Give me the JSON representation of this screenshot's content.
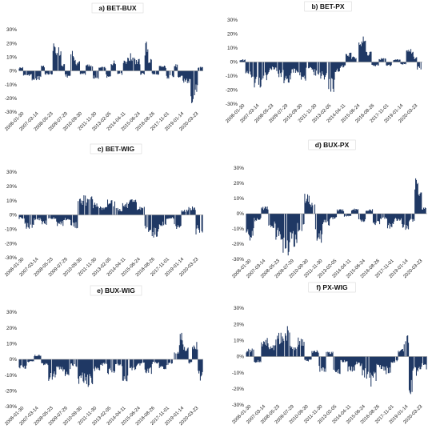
{
  "colors": {
    "bar": "#1f3864",
    "axis": "#888888",
    "grid": "#d9d9d9"
  },
  "chart_data": [
    {
      "type": "bar",
      "title": "a) BET-BUX",
      "yticks": [
        "30%",
        "20%",
        "10%",
        "0%",
        "-10%",
        "-20%",
        "-30%"
      ],
      "xticks": [
        "2006-01-30",
        "2007-03-14",
        "2008-05-23",
        "2009-07-29",
        "2010-09-30",
        "2011-11-30",
        "2013-02-05",
        "2014-04-11",
        "2015-06-24",
        "2016-08-26",
        "2017-11-01",
        "2019-01-14",
        "2020-03-23"
      ],
      "ylim": [
        -30,
        30
      ],
      "segments": [
        [
          0,
          0.02,
          3
        ],
        [
          0.02,
          0.07,
          -4
        ],
        [
          0.07,
          0.12,
          -7
        ],
        [
          0.12,
          0.14,
          5
        ],
        [
          0.14,
          0.18,
          -3
        ],
        [
          0.18,
          0.19,
          29
        ],
        [
          0.19,
          0.23,
          18
        ],
        [
          0.23,
          0.25,
          5
        ],
        [
          0.25,
          0.28,
          -5
        ],
        [
          0.28,
          0.3,
          17
        ],
        [
          0.3,
          0.33,
          8
        ],
        [
          0.33,
          0.36,
          -3
        ],
        [
          0.36,
          0.4,
          5
        ],
        [
          0.4,
          0.43,
          -6
        ],
        [
          0.43,
          0.47,
          3
        ],
        [
          0.47,
          0.5,
          -5
        ],
        [
          0.5,
          0.53,
          8
        ],
        [
          0.53,
          0.56,
          -3
        ],
        [
          0.56,
          0.59,
          10
        ],
        [
          0.59,
          0.63,
          13
        ],
        [
          0.63,
          0.66,
          9
        ],
        [
          0.66,
          0.68,
          -3
        ],
        [
          0.68,
          0.7,
          22
        ],
        [
          0.7,
          0.72,
          10
        ],
        [
          0.72,
          0.76,
          -3
        ],
        [
          0.76,
          0.8,
          4
        ],
        [
          0.8,
          0.84,
          -6
        ],
        [
          0.84,
          0.86,
          5
        ],
        [
          0.86,
          0.89,
          -5
        ],
        [
          0.89,
          0.93,
          -10
        ],
        [
          0.93,
          0.95,
          -24
        ],
        [
          0.95,
          0.97,
          -18
        ],
        [
          0.97,
          1.0,
          4
        ]
      ]
    },
    {
      "type": "bar",
      "title": "b) BET-PX",
      "yticks": [
        "30%",
        "20%",
        "10%",
        "0%",
        "-10%",
        "-20%",
        "-30%"
      ],
      "xticks": [
        "2006-01-30",
        "2007-03-14",
        "2008-05-23",
        "2009-07-29",
        "2010-09-30",
        "2011-11-30",
        "2013-02-05",
        "2014-04-11",
        "2015-06-24",
        "2016-08-26",
        "2017-11-01",
        "2019-01-14",
        "2020-03-23"
      ],
      "ylim": [
        -30,
        30
      ],
      "segments": [
        [
          0,
          0.03,
          2
        ],
        [
          0.03,
          0.07,
          -12
        ],
        [
          0.07,
          0.12,
          -21
        ],
        [
          0.12,
          0.16,
          -14
        ],
        [
          0.16,
          0.2,
          -6
        ],
        [
          0.2,
          0.24,
          -11
        ],
        [
          0.24,
          0.28,
          -16
        ],
        [
          0.28,
          0.32,
          -8
        ],
        [
          0.32,
          0.36,
          -14
        ],
        [
          0.36,
          0.4,
          -6
        ],
        [
          0.4,
          0.44,
          -10
        ],
        [
          0.44,
          0.48,
          -13
        ],
        [
          0.48,
          0.52,
          -23
        ],
        [
          0.52,
          0.55,
          -8
        ],
        [
          0.55,
          0.58,
          -4
        ],
        [
          0.58,
          0.61,
          7
        ],
        [
          0.61,
          0.64,
          4
        ],
        [
          0.64,
          0.66,
          23
        ],
        [
          0.66,
          0.69,
          19
        ],
        [
          0.69,
          0.72,
          9
        ],
        [
          0.72,
          0.76,
          -3
        ],
        [
          0.76,
          0.8,
          3
        ],
        [
          0.8,
          0.84,
          -3
        ],
        [
          0.84,
          0.88,
          2
        ],
        [
          0.88,
          0.91,
          -2
        ],
        [
          0.91,
          0.95,
          11
        ],
        [
          0.95,
          0.97,
          4
        ],
        [
          0.97,
          1.0,
          -6
        ]
      ]
    },
    {
      "type": "bar",
      "title": "c) BET-WIG",
      "yticks": [
        "30%",
        "20%",
        "10%",
        "0%",
        "-10%",
        "-20%",
        "-30%"
      ],
      "xticks": [
        "2006-01-30",
        "2007-03-14",
        "2008-05-23",
        "2009-07-29",
        "2010-09-30",
        "2011-11-30",
        "2013-02-05",
        "2014-04-11",
        "2015-06-24",
        "2016-08-26",
        "2017-11-01",
        "2019-01-14",
        "2020-03-23"
      ],
      "ylim": [
        -30,
        30
      ],
      "segments": [
        [
          0,
          0.03,
          -3
        ],
        [
          0.03,
          0.08,
          -10
        ],
        [
          0.08,
          0.12,
          -4
        ],
        [
          0.12,
          0.16,
          -7
        ],
        [
          0.16,
          0.2,
          -3
        ],
        [
          0.2,
          0.24,
          -8
        ],
        [
          0.24,
          0.28,
          -4
        ],
        [
          0.28,
          0.32,
          -10
        ],
        [
          0.32,
          0.36,
          14
        ],
        [
          0.36,
          0.4,
          13
        ],
        [
          0.4,
          0.44,
          9
        ],
        [
          0.44,
          0.48,
          6
        ],
        [
          0.48,
          0.52,
          12
        ],
        [
          0.52,
          0.56,
          5
        ],
        [
          0.56,
          0.6,
          9
        ],
        [
          0.6,
          0.64,
          11
        ],
        [
          0.64,
          0.68,
          6
        ],
        [
          0.68,
          0.72,
          -12
        ],
        [
          0.72,
          0.76,
          -18
        ],
        [
          0.76,
          0.8,
          -8
        ],
        [
          0.8,
          0.84,
          -3
        ],
        [
          0.84,
          0.88,
          -10
        ],
        [
          0.88,
          0.92,
          4
        ],
        [
          0.92,
          0.96,
          6
        ],
        [
          0.96,
          1.0,
          -14
        ]
      ]
    },
    {
      "type": "bar",
      "title": "d) BUX-PX",
      "yticks": [
        "30%",
        "20%",
        "10%",
        "0%",
        "-10%",
        "-20%",
        "-30%"
      ],
      "xticks": [
        "2006-01-30",
        "2007-03-14",
        "2008-05-23",
        "2009-07-29",
        "2010-09-30",
        "2011-11-30",
        "2013-02-05",
        "2014-04-11",
        "2015-06-24",
        "2016-08-26",
        "2017-11-01",
        "2019-01-14",
        "2020-03-23"
      ],
      "ylim": [
        -30,
        30
      ],
      "segments": [
        [
          0,
          0.04,
          -18
        ],
        [
          0.04,
          0.08,
          -5
        ],
        [
          0.08,
          0.12,
          5
        ],
        [
          0.12,
          0.16,
          -10
        ],
        [
          0.16,
          0.2,
          -18
        ],
        [
          0.2,
          0.24,
          -30
        ],
        [
          0.24,
          0.28,
          -22
        ],
        [
          0.28,
          0.32,
          -12
        ],
        [
          0.32,
          0.35,
          14
        ],
        [
          0.35,
          0.38,
          8
        ],
        [
          0.38,
          0.42,
          -20
        ],
        [
          0.42,
          0.46,
          -8
        ],
        [
          0.46,
          0.5,
          -4
        ],
        [
          0.5,
          0.54,
          3
        ],
        [
          0.54,
          0.58,
          -2
        ],
        [
          0.58,
          0.62,
          4
        ],
        [
          0.62,
          0.66,
          -6
        ],
        [
          0.66,
          0.7,
          3
        ],
        [
          0.7,
          0.74,
          -8
        ],
        [
          0.74,
          0.78,
          -4
        ],
        [
          0.78,
          0.82,
          -10
        ],
        [
          0.82,
          0.86,
          -5
        ],
        [
          0.86,
          0.9,
          -12
        ],
        [
          0.9,
          0.93,
          -6
        ],
        [
          0.93,
          0.95,
          28
        ],
        [
          0.95,
          0.97,
          22
        ],
        [
          0.97,
          1.0,
          5
        ]
      ]
    },
    {
      "type": "bar",
      "title": "e) BUX-WIG",
      "yticks": [
        "30%",
        "20%",
        "10%",
        "0%",
        "-10%",
        "-20%",
        "-30%"
      ],
      "xticks": [
        "2006-01-30",
        "2007-03-14",
        "2008-05-23",
        "2009-07-29",
        "2010-09-30",
        "2011-11-30",
        "2013-02-05",
        "2014-04-11",
        "2015-06-24",
        "2016-08-26",
        "2017-11-01",
        "2019-01-14",
        "2020-03-23"
      ],
      "ylim": [
        -30,
        30
      ],
      "segments": [
        [
          0,
          0.04,
          -6
        ],
        [
          0.04,
          0.08,
          -2
        ],
        [
          0.08,
          0.12,
          3
        ],
        [
          0.12,
          0.16,
          -4
        ],
        [
          0.16,
          0.2,
          -15
        ],
        [
          0.2,
          0.24,
          -8
        ],
        [
          0.24,
          0.28,
          -12
        ],
        [
          0.28,
          0.32,
          -5
        ],
        [
          0.32,
          0.36,
          -17
        ],
        [
          0.36,
          0.4,
          -18
        ],
        [
          0.4,
          0.44,
          -8
        ],
        [
          0.44,
          0.48,
          -4
        ],
        [
          0.48,
          0.52,
          -10
        ],
        [
          0.52,
          0.56,
          -5
        ],
        [
          0.56,
          0.6,
          -14
        ],
        [
          0.6,
          0.64,
          -8
        ],
        [
          0.64,
          0.68,
          -4
        ],
        [
          0.68,
          0.72,
          -10
        ],
        [
          0.72,
          0.76,
          -3
        ],
        [
          0.76,
          0.8,
          -8
        ],
        [
          0.8,
          0.84,
          -4
        ],
        [
          0.84,
          0.87,
          5
        ],
        [
          0.87,
          0.89,
          18
        ],
        [
          0.89,
          0.92,
          10
        ],
        [
          0.92,
          0.94,
          -3
        ],
        [
          0.94,
          0.97,
          12
        ],
        [
          0.97,
          1.0,
          -14
        ]
      ]
    },
    {
      "type": "bar",
      "title": "f) PX-WIG",
      "yticks": [
        "30%",
        "20%",
        "10%",
        "0%",
        "-10%",
        "-20%",
        "-30%"
      ],
      "xticks": [
        "2006-01-30",
        "2007-03-14",
        "2008-05-23",
        "2009-07-29",
        "2010-09-30",
        "2011-11-30",
        "2013-02-05",
        "2014-04-11",
        "2015-06-24",
        "2016-08-26",
        "2017-11-01",
        "2019-01-14",
        "2020-03-23"
      ],
      "ylim": [
        -30,
        30
      ],
      "segments": [
        [
          0,
          0.04,
          5
        ],
        [
          0.04,
          0.08,
          -4
        ],
        [
          0.08,
          0.12,
          12
        ],
        [
          0.12,
          0.16,
          8
        ],
        [
          0.16,
          0.2,
          15
        ],
        [
          0.2,
          0.24,
          19
        ],
        [
          0.24,
          0.28,
          7
        ],
        [
          0.28,
          0.32,
          12
        ],
        [
          0.32,
          0.36,
          -3
        ],
        [
          0.36,
          0.4,
          4
        ],
        [
          0.4,
          0.44,
          -10
        ],
        [
          0.44,
          0.48,
          3
        ],
        [
          0.48,
          0.52,
          -12
        ],
        [
          0.52,
          0.56,
          -4
        ],
        [
          0.56,
          0.6,
          -10
        ],
        [
          0.6,
          0.64,
          -6
        ],
        [
          0.64,
          0.68,
          -14
        ],
        [
          0.68,
          0.72,
          -19
        ],
        [
          0.72,
          0.76,
          -8
        ],
        [
          0.76,
          0.8,
          -12
        ],
        [
          0.8,
          0.84,
          -4
        ],
        [
          0.84,
          0.87,
          5
        ],
        [
          0.87,
          0.9,
          14
        ],
        [
          0.9,
          0.92,
          -26
        ],
        [
          0.92,
          0.95,
          -12
        ],
        [
          0.95,
          1.0,
          -8
        ]
      ]
    }
  ]
}
